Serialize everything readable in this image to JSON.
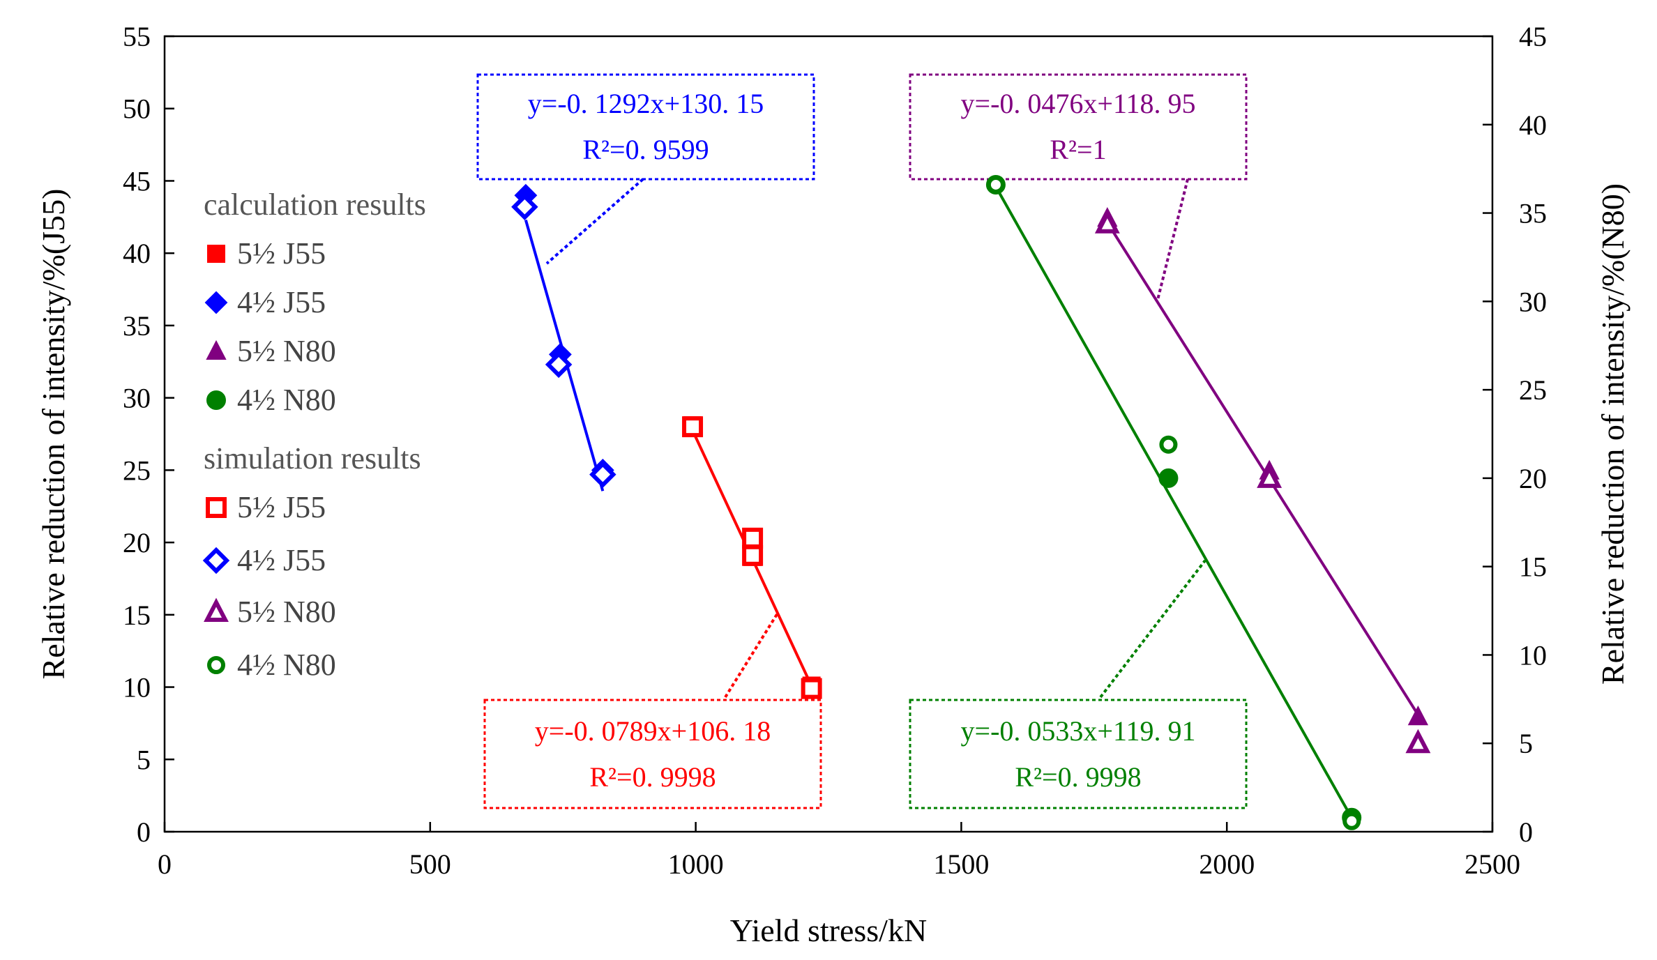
{
  "chart_data": {
    "type": "scatter",
    "xlabel": "Yield stress/kN",
    "ylabel_left": "Relative reduction of intensity/%(J55)",
    "ylabel_right": "Relative reduction of intensity/%(N80)",
    "xlim": [
      0,
      2500
    ],
    "ylim_left": [
      0,
      55
    ],
    "ylim_right": [
      0,
      45
    ],
    "x_ticks": [
      "0",
      "500",
      "1000",
      "1500",
      "2000",
      "2500"
    ],
    "y_ticks_left": [
      "0",
      "5",
      "10",
      "15",
      "20",
      "25",
      "30",
      "35",
      "40",
      "45",
      "50",
      "55"
    ],
    "y_ticks_right": [
      "0",
      "5",
      "10",
      "15",
      "20",
      "25",
      "30",
      "35",
      "40",
      "45"
    ],
    "grid": false,
    "legend": {
      "calc_header": "calculation results",
      "sim_header": "simulation results",
      "calc_items": [
        "5½ J55",
        "4½ J55",
        "5½ N80",
        "4½ N80"
      ],
      "sim_items": [
        "5½ J55",
        "4½ J55",
        "5½ N80",
        "4½ N80"
      ]
    },
    "series": [
      {
        "name": "5½ J55",
        "axis": "left",
        "color": "#ff0000",
        "marker": "square",
        "calc": [
          [
            994,
            28.1
          ],
          [
            1107,
            20.1
          ],
          [
            1107,
            19.0
          ],
          [
            1218,
            10.1
          ]
        ],
        "sim": [
          [
            994,
            28.0
          ],
          [
            1107,
            20.3
          ],
          [
            1107,
            19.1
          ],
          [
            1218,
            9.9
          ]
        ],
        "fit": {
          "x": [
            994,
            1218
          ],
          "equation": "y=-0. 0789x+106. 18",
          "r2": "R²=0. 9998"
        }
      },
      {
        "name": "4½ J55",
        "axis": "left",
        "color": "#0000ff",
        "marker": "diamond",
        "calc": [
          [
            680,
            44.0
          ],
          [
            745,
            33.0
          ],
          [
            825,
            25.0
          ]
        ],
        "sim": [
          [
            678,
            43.2
          ],
          [
            742,
            32.3
          ],
          [
            825,
            24.7
          ]
        ],
        "fit": {
          "x": [
            680,
            825
          ],
          "equation": "y=-0. 1292x+130. 15",
          "r2": "R²=0. 9599"
        }
      },
      {
        "name": "5½ N80",
        "axis": "right",
        "color": "#800080",
        "marker": "triangle",
        "calc": [
          [
            1775,
            34.7
          ],
          [
            2080,
            20.4
          ],
          [
            2360,
            6.5
          ]
        ],
        "sim": [
          [
            1775,
            34.4
          ],
          [
            2080,
            20.0
          ],
          [
            2360,
            5.0
          ]
        ],
        "fit": {
          "x": [
            1775,
            2360
          ],
          "equation": "y=-0. 0476x+118. 95",
          "r2": "R²=1"
        }
      },
      {
        "name": "4½ N80",
        "axis": "right",
        "color": "#008000",
        "marker": "circle",
        "calc": [
          [
            1565,
            36.6
          ],
          [
            1890,
            20.0
          ],
          [
            2235,
            0.8
          ]
        ],
        "sim": [
          [
            1565,
            36.6
          ],
          [
            1890,
            21.9
          ],
          [
            2235,
            0.6
          ]
        ],
        "fit": {
          "x": [
            1565,
            2235
          ],
          "equation": "y=-0. 0533x+119. 91",
          "r2": "R²=0. 9998"
        }
      }
    ]
  }
}
